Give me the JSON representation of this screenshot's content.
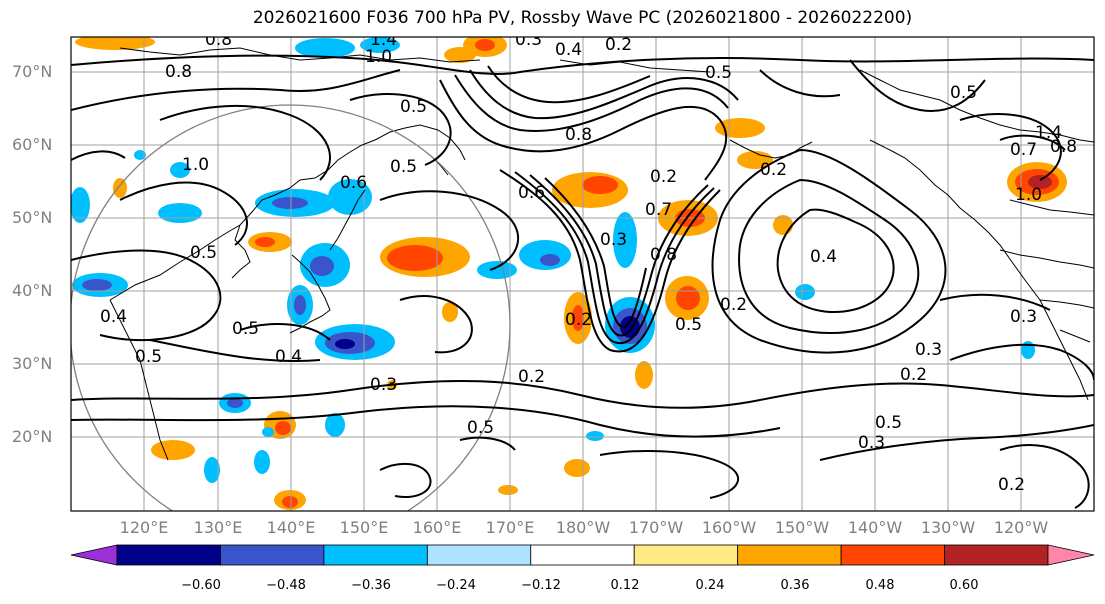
{
  "title": "2026021600 F036 700 hPa PV, Rossby Wave PC (2026021800 - 2026022200)",
  "latitude_labels": [
    "70°N",
    "60°N",
    "50°N",
    "40°N",
    "30°N",
    "20°N"
  ],
  "longitude_labels": [
    "120°E",
    "130°E",
    "140°E",
    "150°E",
    "160°E",
    "170°E",
    "180°W",
    "170°W",
    "160°W",
    "150°W",
    "140°W",
    "130°W",
    "120°W"
  ],
  "contour_labels": [
    "0.8",
    "1.4",
    "1.0",
    "0.8",
    "0.3",
    "0.4",
    "0.2",
    "0.5",
    "0.5",
    "0.5",
    "0.8",
    "1.0",
    "0.6",
    "0.5",
    "0.4",
    "0.5",
    "0.4",
    "0.5",
    "0.3",
    "0.5",
    "0.2",
    "0.6",
    "0.2",
    "0.7",
    "0.8",
    "0.5",
    "0.2",
    "0.3",
    "0.2",
    "0.4",
    "0.3",
    "0.5",
    "0.3",
    "0.2",
    "0.2",
    "1.0",
    "0.7",
    "1.4",
    "0.8",
    "0.5",
    "0.3",
    "0.2"
  ],
  "colorbar": {
    "tick_labels": [
      "−0.60",
      "−0.48",
      "−0.36",
      "−0.24",
      "−0.12",
      "0.12",
      "0.24",
      "0.36",
      "0.48",
      "0.60"
    ],
    "colors": [
      "#9b30d9",
      "#000088",
      "#3a55cc",
      "#00bfff",
      "#aee2ff",
      "#ffffff",
      "#ffea85",
      "#ffa500",
      "#ff4500",
      "#b22222",
      "#ff85aa"
    ]
  },
  "anomaly_colors": {
    "neg_strong": "#000088",
    "neg_mid": "#3a55cc",
    "neg": "#00bfff",
    "pos": "#ffa500",
    "pos_mid": "#ff4500",
    "pos_strong": "#b22222"
  }
}
